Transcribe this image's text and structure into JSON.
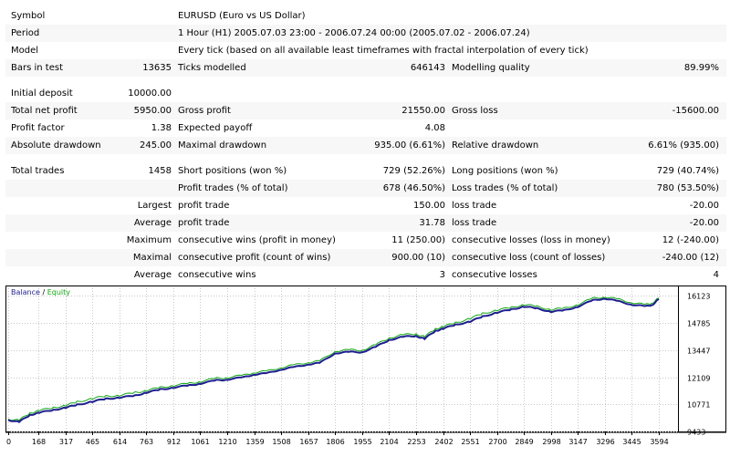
{
  "report": {
    "symbol": {
      "label": "Symbol",
      "value": "EURUSD (Euro vs US Dollar)"
    },
    "period": {
      "label": "Period",
      "value": "1 Hour (H1) 2005.07.03 23:00 - 2006.07.24 00:00 (2005.07.02 - 2006.07.24)"
    },
    "model": {
      "label": "Model",
      "value": "Every tick (based on all available least timeframes with fractal interpolation of every tick)"
    },
    "bars": {
      "label": "Bars in test",
      "value": "13635",
      "label2": "Ticks modelled",
      "value2": "646143",
      "label3": "Modelling quality",
      "value3": "89.99%"
    },
    "initial_deposit": {
      "label": "Initial deposit",
      "value": "10000.00"
    },
    "net_profit": {
      "label": "Total net profit",
      "value": "5950.00",
      "label2": "Gross profit",
      "value2": "21550.00",
      "label3": "Gross loss",
      "value3": "-15600.00"
    },
    "profit_factor": {
      "label": "Profit factor",
      "value": "1.38",
      "label2": "Expected payoff",
      "value2": "4.08"
    },
    "absolute_drawdown": {
      "label": "Absolute drawdown",
      "value": "245.00",
      "label2": "Maximal drawdown",
      "value2": "935.00 (6.61%)",
      "label3": "Relative drawdown",
      "value3": "6.61% (935.00)"
    },
    "total_trades": {
      "label": "Total trades",
      "value": "1458",
      "label2": "Short positions (won %)",
      "value2": "729 (52.26%)",
      "label3": "Long positions (won %)",
      "value3": "729 (40.74%)"
    },
    "profit_trades": {
      "label2": "Profit trades (% of total)",
      "value2": "678 (46.50%)",
      "label3": "Loss trades (% of total)",
      "value3": "780 (53.50%)"
    },
    "largest": {
      "prefix": "Largest",
      "label2": "profit trade",
      "value2": "150.00",
      "label3": "loss trade",
      "value3": "-20.00"
    },
    "average": {
      "prefix": "Average",
      "label2": "profit trade",
      "value2": "31.78",
      "label3": "loss trade",
      "value3": "-20.00"
    },
    "maximum": {
      "prefix": "Maximum",
      "label2": "consecutive wins (profit in money)",
      "value2": "11 (250.00)",
      "label3": "consecutive losses (loss in money)",
      "value3": "12 (-240.00)"
    },
    "maximal": {
      "prefix": "Maximal",
      "label2": "consecutive profit (count of wins)",
      "value2": "900.00 (10)",
      "label3": "consecutive loss (count of losses)",
      "value3": "-240.00 (12)"
    },
    "average2": {
      "prefix": "Average",
      "label2": "consecutive wins",
      "value2": "3",
      "label3": "consecutive losses",
      "value3": "4"
    }
  },
  "chart": {
    "legend_balance": "Balance",
    "legend_sep": " / ",
    "legend_equity": "Equity",
    "colors": {
      "balance": "#1d1d8f",
      "equity": "#11a611",
      "grid": "#c8c8c8",
      "axis": "#000000"
    }
  },
  "chart_data": {
    "type": "line",
    "xlim": [
      0,
      3700
    ],
    "ylim": [
      9433,
      16500
    ],
    "x_ticks": [
      0,
      168,
      317,
      465,
      614,
      763,
      912,
      1061,
      1210,
      1359,
      1508,
      1657,
      1806,
      1955,
      2104,
      2253,
      2402,
      2551,
      2700,
      2849,
      2998,
      3147,
      3296,
      3445,
      3594
    ],
    "y_ticks": [
      9433,
      10771,
      12109,
      13447,
      14785,
      16123
    ],
    "series": [
      {
        "name": "Balance",
        "points": [
          [
            0,
            10000
          ],
          [
            60,
            9900
          ],
          [
            120,
            10250
          ],
          [
            170,
            10350
          ],
          [
            250,
            10500
          ],
          [
            317,
            10600
          ],
          [
            380,
            10750
          ],
          [
            465,
            10900
          ],
          [
            540,
            11050
          ],
          [
            614,
            11100
          ],
          [
            700,
            11200
          ],
          [
            763,
            11350
          ],
          [
            840,
            11500
          ],
          [
            912,
            11600
          ],
          [
            1000,
            11700
          ],
          [
            1061,
            11800
          ],
          [
            1150,
            11950
          ],
          [
            1210,
            12000
          ],
          [
            1300,
            12100
          ],
          [
            1359,
            12250
          ],
          [
            1430,
            12300
          ],
          [
            1508,
            12500
          ],
          [
            1580,
            12600
          ],
          [
            1657,
            12750
          ],
          [
            1720,
            12800
          ],
          [
            1806,
            13300
          ],
          [
            1880,
            13350
          ],
          [
            1955,
            13350
          ],
          [
            2030,
            13600
          ],
          [
            2104,
            13950
          ],
          [
            2180,
            14100
          ],
          [
            2253,
            14150
          ],
          [
            2300,
            14000
          ],
          [
            2360,
            14400
          ],
          [
            2402,
            14500
          ],
          [
            2470,
            14700
          ],
          [
            2551,
            14850
          ],
          [
            2620,
            15100
          ],
          [
            2700,
            15300
          ],
          [
            2780,
            15450
          ],
          [
            2849,
            15600
          ],
          [
            2920,
            15500
          ],
          [
            2998,
            15350
          ],
          [
            3070,
            15400
          ],
          [
            3147,
            15600
          ],
          [
            3230,
            15900
          ],
          [
            3296,
            16000
          ],
          [
            3370,
            15850
          ],
          [
            3445,
            15700
          ],
          [
            3520,
            15600
          ],
          [
            3560,
            15700
          ],
          [
            3594,
            15950
          ]
        ]
      },
      {
        "name": "Equity",
        "points": [
          [
            0,
            10050
          ],
          [
            60,
            9980
          ],
          [
            120,
            10350
          ],
          [
            170,
            10450
          ],
          [
            250,
            10620
          ],
          [
            317,
            10700
          ],
          [
            380,
            10900
          ],
          [
            465,
            11050
          ],
          [
            540,
            11180
          ],
          [
            614,
            11200
          ],
          [
            700,
            11350
          ],
          [
            763,
            11450
          ],
          [
            840,
            11600
          ],
          [
            912,
            11700
          ],
          [
            1000,
            11800
          ],
          [
            1061,
            11900
          ],
          [
            1150,
            12050
          ],
          [
            1210,
            12100
          ],
          [
            1300,
            12200
          ],
          [
            1359,
            12350
          ],
          [
            1430,
            12400
          ],
          [
            1508,
            12600
          ],
          [
            1580,
            12700
          ],
          [
            1657,
            12850
          ],
          [
            1720,
            12900
          ],
          [
            1806,
            13400
          ],
          [
            1880,
            13450
          ],
          [
            1955,
            13450
          ],
          [
            2030,
            13700
          ],
          [
            2104,
            14050
          ],
          [
            2180,
            14200
          ],
          [
            2253,
            14250
          ],
          [
            2300,
            14100
          ],
          [
            2360,
            14500
          ],
          [
            2402,
            14600
          ],
          [
            2470,
            14800
          ],
          [
            2551,
            15000
          ],
          [
            2620,
            15250
          ],
          [
            2700,
            15420
          ],
          [
            2780,
            15550
          ],
          [
            2849,
            15700
          ],
          [
            2920,
            15600
          ],
          [
            2998,
            15450
          ],
          [
            3070,
            15500
          ],
          [
            3147,
            15700
          ],
          [
            3230,
            16000
          ],
          [
            3296,
            16080
          ],
          [
            3370,
            15950
          ],
          [
            3445,
            15800
          ],
          [
            3520,
            15680
          ],
          [
            3560,
            15800
          ],
          [
            3594,
            16000
          ]
        ]
      }
    ]
  }
}
